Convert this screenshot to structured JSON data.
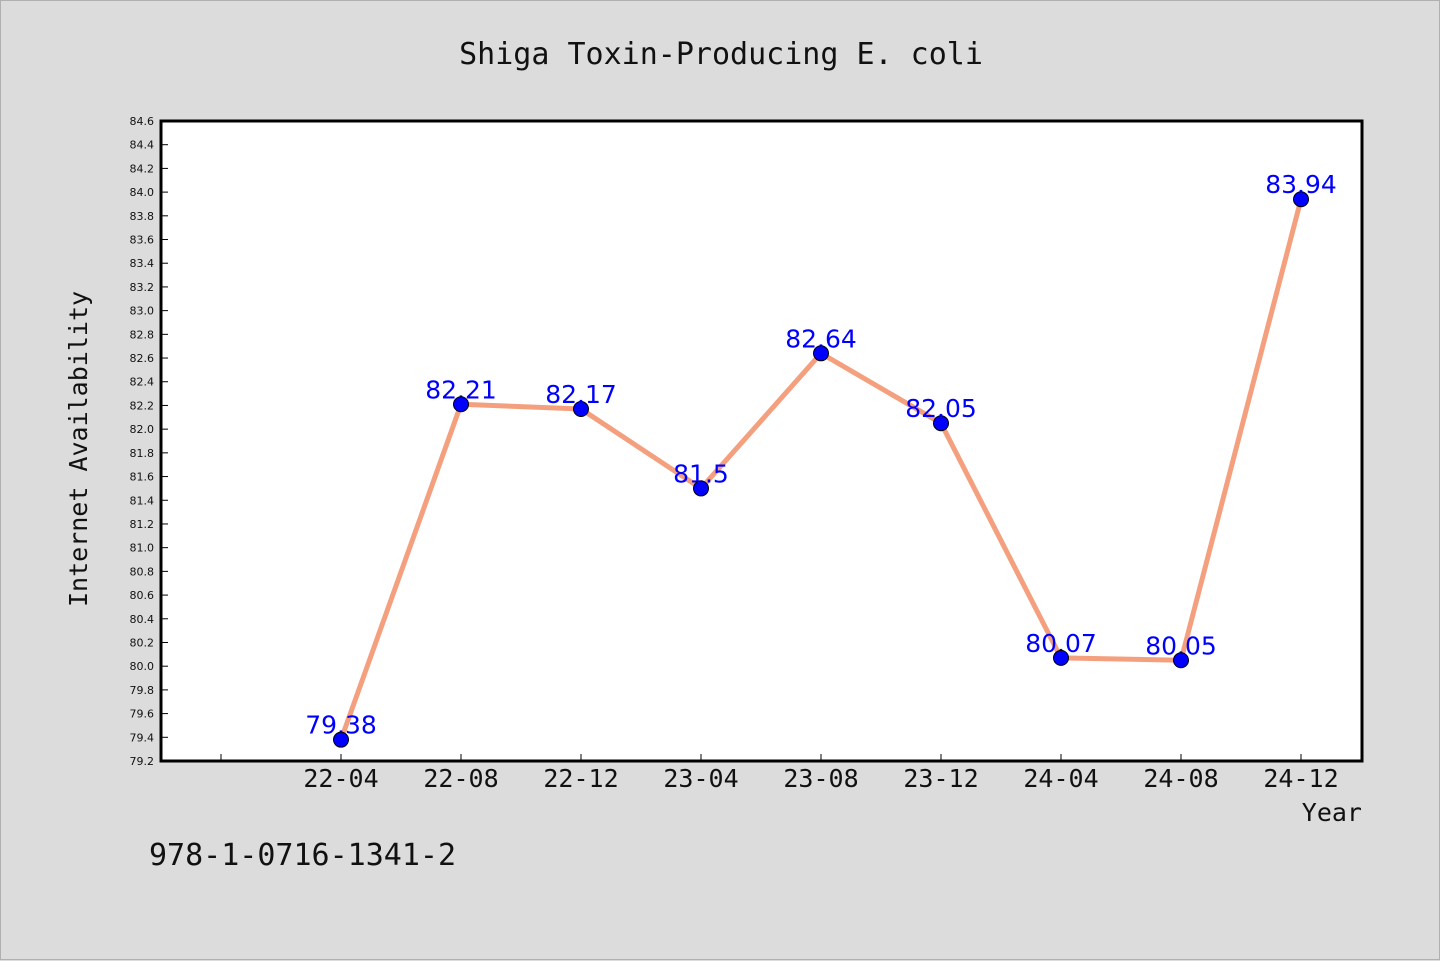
{
  "chart_data": {
    "type": "line",
    "title": "Shiga Toxin-Producing E. coli",
    "xlabel": "Year",
    "ylabel": "Internet Availability",
    "categories": [
      "22-04",
      "22-08",
      "22-12",
      "23-04",
      "23-08",
      "23-12",
      "24-04",
      "24-08",
      "24-12"
    ],
    "series": [
      {
        "values": [
          79.38,
          82.21,
          82.17,
          81.5,
          82.64,
          82.05,
          80.07,
          80.05,
          83.94
        ],
        "labels": [
          "79.38",
          "82.21",
          "82.17",
          "81.5",
          "82.64",
          "82.05",
          "80.07",
          "80.05",
          "83.94"
        ],
        "line_color": "#f4a07e",
        "marker_color": "#0000ff"
      }
    ],
    "ylim": [
      79.2,
      84.6
    ],
    "ytick_step": 0.2,
    "grid": false,
    "legend": "none"
  },
  "footnote": "978-1-0716-1341-2",
  "colors": {
    "background": "#dcdcdc",
    "plot_background": "#ffffff",
    "line": "#f4a07e",
    "marker": "#0000ff",
    "data_label": "#0000ff"
  }
}
